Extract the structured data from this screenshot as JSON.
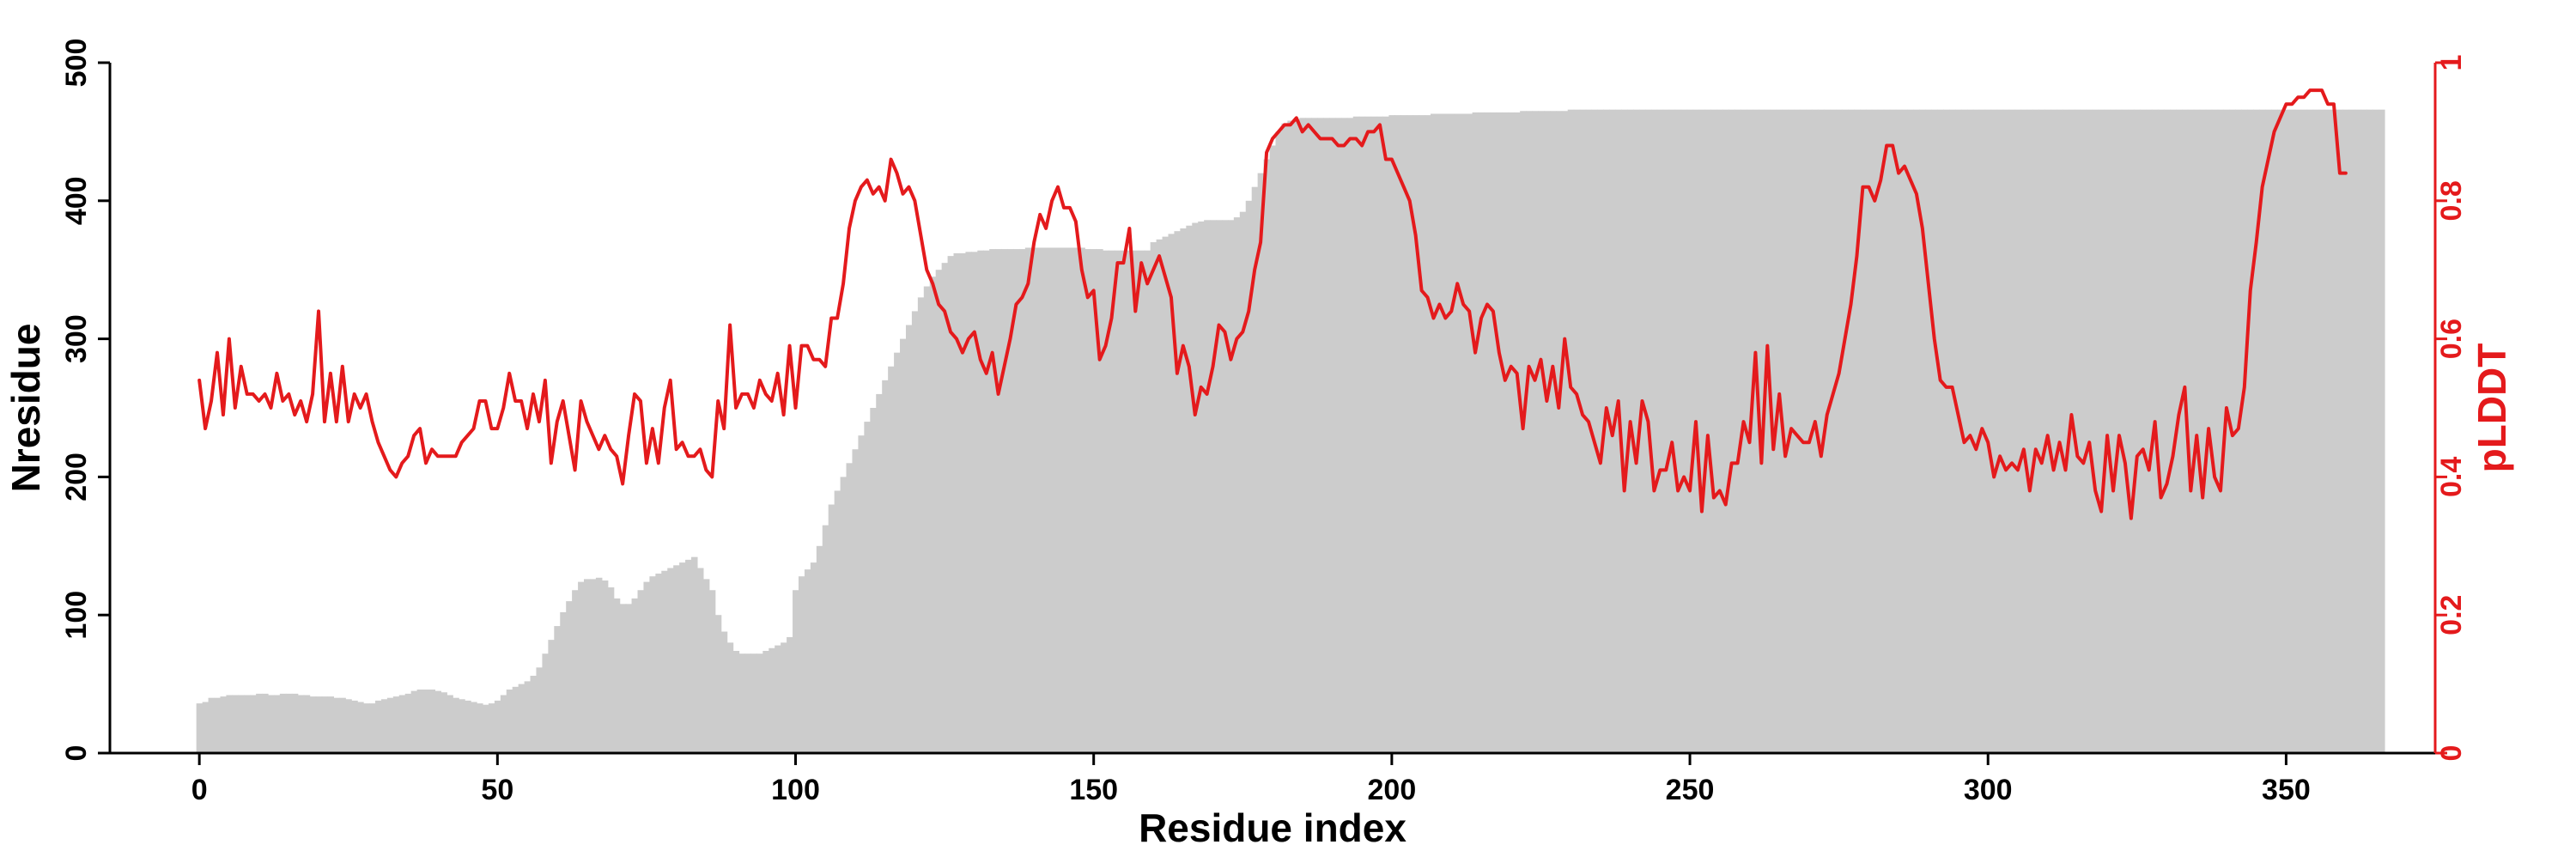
{
  "chart_data": {
    "type": "bar",
    "title": "",
    "xlabel": "Residue index",
    "ylabel": "Nresidue",
    "y2label": "pLDDT",
    "xlim": [
      -15,
      375
    ],
    "ylim": [
      0,
      500
    ],
    "y2lim": [
      0,
      1
    ],
    "xticks": [
      0,
      50,
      100,
      150,
      200,
      250,
      300,
      350
    ],
    "yticks": [
      0,
      100,
      200,
      300,
      400,
      500
    ],
    "y2ticks": [
      0,
      0.2,
      0.4,
      0.6,
      0.8,
      1
    ],
    "xtick_labels": [
      "0",
      "50",
      "100",
      "150",
      "200",
      "250",
      "300",
      "350"
    ],
    "ytick_labels": [
      "0",
      "100",
      "200",
      "300",
      "400",
      "500"
    ],
    "y2tick_labels": [
      "0",
      "0.2",
      "0.4",
      "0.6",
      "0.8",
      "1"
    ],
    "colors": {
      "bars": "#cccccc",
      "line": "#e41a1c",
      "axis": "#000000",
      "axis2": "#e41a1c"
    },
    "grid": false,
    "series": [
      {
        "type": "bar",
        "axis": "left",
        "x_start": 0,
        "values": [
          36,
          37,
          40,
          40,
          41,
          42,
          42,
          42,
          42,
          42,
          43,
          43,
          42,
          42,
          43,
          43,
          43,
          42,
          42,
          41,
          41,
          41,
          41,
          40,
          40,
          39,
          38,
          37,
          36,
          36,
          38,
          39,
          40,
          41,
          42,
          43,
          45,
          46,
          46,
          46,
          45,
          44,
          42,
          40,
          39,
          38,
          37,
          36,
          35,
          36,
          38,
          42,
          46,
          48,
          50,
          52,
          56,
          62,
          72,
          82,
          92,
          102,
          110,
          118,
          124,
          126,
          126,
          127,
          125,
          120,
          112,
          108,
          108,
          112,
          118,
          124,
          128,
          130,
          132,
          134,
          136,
          138,
          140,
          142,
          134,
          126,
          118,
          100,
          88,
          80,
          74,
          72,
          72,
          72,
          72,
          74,
          76,
          78,
          80,
          84,
          118,
          128,
          133,
          138,
          150,
          165,
          180,
          190,
          200,
          210,
          220,
          230,
          240,
          250,
          260,
          270,
          280,
          290,
          300,
          310,
          320,
          330,
          338,
          345,
          350,
          355,
          360,
          362,
          362,
          363,
          363,
          364,
          364,
          365,
          365,
          365,
          365,
          365,
          365,
          366,
          366,
          366,
          366,
          366,
          366,
          366,
          366,
          366,
          366,
          365,
          365,
          365,
          364,
          364,
          364,
          364,
          364,
          364,
          364,
          364,
          370,
          372,
          374,
          376,
          378,
          380,
          382,
          384,
          385,
          386,
          386,
          386,
          386,
          386,
          388,
          392,
          400,
          410,
          420,
          430,
          440,
          450,
          456,
          458,
          459,
          460,
          460,
          460,
          460,
          460,
          460,
          460,
          460,
          460,
          461,
          461,
          461,
          461,
          461,
          461,
          462,
          462,
          462,
          462,
          462,
          462,
          462,
          463,
          463,
          463,
          463,
          463,
          463,
          463,
          464,
          464,
          464,
          464,
          464,
          464,
          464,
          464,
          465,
          465,
          465,
          465,
          465,
          465,
          465,
          465,
          466,
          466,
          466,
          466,
          466,
          466,
          466,
          466,
          466,
          466,
          466,
          466,
          466,
          466,
          466,
          466,
          466,
          466,
          466,
          466,
          466,
          466,
          466,
          466,
          466,
          466,
          466,
          466,
          466,
          466,
          466,
          466,
          466,
          466,
          466,
          466,
          466,
          466,
          466,
          466,
          466,
          466,
          466,
          466,
          466,
          466,
          466,
          466,
          466,
          466,
          466,
          466,
          466,
          466,
          466,
          466,
          466,
          466,
          466,
          466,
          466,
          466,
          466,
          466,
          466,
          466,
          466,
          466,
          466,
          466,
          466,
          466,
          466,
          466,
          466,
          466,
          466,
          466,
          466,
          466,
          466,
          466,
          466,
          466,
          466,
          466,
          466,
          466,
          466,
          466,
          466,
          466,
          466,
          466,
          466,
          466,
          466,
          466,
          466,
          466,
          466,
          466,
          466,
          466,
          466,
          466,
          466,
          466,
          466,
          466,
          466,
          466,
          466,
          466,
          466,
          466,
          466,
          466,
          466,
          466,
          466,
          466,
          466,
          466,
          466,
          466,
          466,
          466,
          466,
          466,
          466,
          466,
          466,
          466,
          466,
          466,
          466
        ]
      },
      {
        "type": "line",
        "axis": "right",
        "name": "pLDDT",
        "x_start": 0,
        "values": [
          0.54,
          0.47,
          0.51,
          0.58,
          0.49,
          0.6,
          0.5,
          0.56,
          0.52,
          0.52,
          0.51,
          0.52,
          0.5,
          0.55,
          0.51,
          0.52,
          0.49,
          0.51,
          0.48,
          0.52,
          0.64,
          0.48,
          0.55,
          0.48,
          0.56,
          0.48,
          0.52,
          0.5,
          0.52,
          0.48,
          0.45,
          0.43,
          0.41,
          0.4,
          0.42,
          0.43,
          0.46,
          0.47,
          0.42,
          0.44,
          0.43,
          0.43,
          0.43,
          0.43,
          0.45,
          0.46,
          0.47,
          0.51,
          0.51,
          0.47,
          0.47,
          0.5,
          0.55,
          0.51,
          0.51,
          0.47,
          0.52,
          0.48,
          0.54,
          0.42,
          0.48,
          0.51,
          0.46,
          0.41,
          0.51,
          0.48,
          0.46,
          0.44,
          0.46,
          0.44,
          0.43,
          0.39,
          0.46,
          0.52,
          0.51,
          0.42,
          0.47,
          0.42,
          0.5,
          0.54,
          0.44,
          0.45,
          0.43,
          0.43,
          0.44,
          0.41,
          0.4,
          0.51,
          0.47,
          0.62,
          0.5,
          0.52,
          0.52,
          0.5,
          0.54,
          0.52,
          0.51,
          0.55,
          0.49,
          0.59,
          0.5,
          0.59,
          0.59,
          0.57,
          0.57,
          0.56,
          0.63,
          0.63,
          0.68,
          0.76,
          0.8,
          0.82,
          0.83,
          0.81,
          0.82,
          0.8,
          0.86,
          0.84,
          0.81,
          0.82,
          0.8,
          0.75,
          0.7,
          0.68,
          0.65,
          0.64,
          0.61,
          0.6,
          0.58,
          0.6,
          0.61,
          0.57,
          0.55,
          0.58,
          0.52,
          0.56,
          0.6,
          0.65,
          0.66,
          0.68,
          0.74,
          0.78,
          0.76,
          0.8,
          0.82,
          0.79,
          0.79,
          0.77,
          0.7,
          0.66,
          0.67,
          0.57,
          0.59,
          0.63,
          0.71,
          0.71,
          0.76,
          0.64,
          0.71,
          0.68,
          0.7,
          0.72,
          0.69,
          0.66,
          0.55,
          0.59,
          0.56,
          0.49,
          0.53,
          0.52,
          0.56,
          0.62,
          0.61,
          0.57,
          0.6,
          0.61,
          0.64,
          0.7,
          0.74,
          0.87,
          0.89,
          0.9,
          0.91,
          0.91,
          0.92,
          0.9,
          0.91,
          0.9,
          0.89,
          0.89,
          0.89,
          0.88,
          0.88,
          0.89,
          0.89,
          0.88,
          0.9,
          0.9,
          0.91,
          0.86,
          0.86,
          0.84,
          0.82,
          0.8,
          0.75,
          0.67,
          0.66,
          0.63,
          0.65,
          0.63,
          0.64,
          0.68,
          0.65,
          0.64,
          0.58,
          0.63,
          0.65,
          0.64,
          0.58,
          0.54,
          0.56,
          0.55,
          0.47,
          0.56,
          0.54,
          0.57,
          0.51,
          0.56,
          0.5,
          0.6,
          0.53,
          0.52,
          0.49,
          0.48,
          0.45,
          0.42,
          0.5,
          0.46,
          0.51,
          0.38,
          0.48,
          0.42,
          0.51,
          0.48,
          0.38,
          0.41,
          0.41,
          0.45,
          0.38,
          0.4,
          0.38,
          0.48,
          0.35,
          0.46,
          0.37,
          0.38,
          0.36,
          0.42,
          0.42,
          0.48,
          0.45,
          0.58,
          0.42,
          0.59,
          0.44,
          0.52,
          0.43,
          0.47,
          0.46,
          0.45,
          0.45,
          0.48,
          0.43,
          0.49,
          0.52,
          0.55,
          0.6,
          0.65,
          0.72,
          0.82,
          0.82,
          0.8,
          0.83,
          0.88,
          0.88,
          0.84,
          0.85,
          0.83,
          0.81,
          0.76,
          0.68,
          0.6,
          0.54,
          0.53,
          0.53,
          0.49,
          0.45,
          0.46,
          0.44,
          0.47,
          0.45,
          0.4,
          0.43,
          0.41,
          0.42,
          0.41,
          0.44,
          0.38,
          0.44,
          0.42,
          0.46,
          0.41,
          0.45,
          0.41,
          0.49,
          0.43,
          0.42,
          0.45,
          0.38,
          0.35,
          0.46,
          0.38,
          0.46,
          0.42,
          0.34,
          0.43,
          0.44,
          0.41,
          0.48,
          0.37,
          0.39,
          0.43,
          0.49,
          0.53,
          0.38,
          0.46,
          0.37,
          0.47,
          0.4,
          0.38,
          0.5,
          0.46,
          0.47,
          0.53,
          0.67,
          0.74,
          0.82,
          0.86,
          0.9,
          0.92,
          0.94,
          0.94,
          0.95,
          0.95,
          0.96,
          0.96,
          0.96,
          0.94,
          0.94,
          0.84,
          0.84
        ]
      }
    ]
  }
}
